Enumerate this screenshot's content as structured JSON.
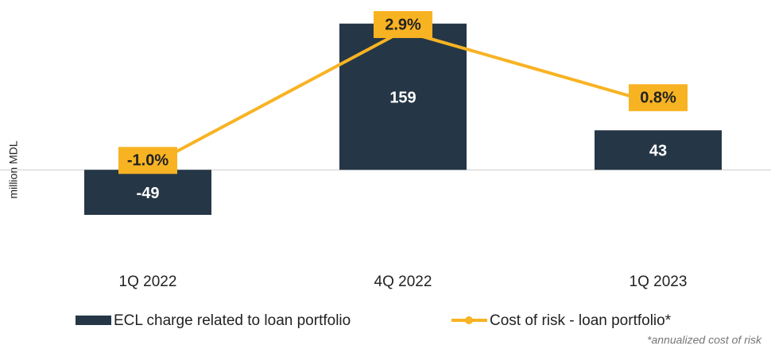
{
  "chart_data": {
    "type": "bar",
    "y_axis_label": "million MDL",
    "categories": [
      "1Q 2022",
      "4Q 2022",
      "1Q 2023"
    ],
    "series": [
      {
        "name": "ECL charge related to loan portfolio",
        "type": "bar",
        "color": "#253746",
        "values": [
          -49,
          159,
          43
        ]
      },
      {
        "name": "Cost of risk - loan portfolio*",
        "type": "line",
        "axis": "y2",
        "color": "#f8b323",
        "values": [
          -1.0,
          2.9,
          0.8
        ],
        "value_labels": [
          "-1.0%",
          "2.9%",
          "0.8%"
        ]
      }
    ],
    "ylim": [
      -80,
      170
    ],
    "y2lim": [
      -3.2,
      3.4
    ],
    "legend": "bottom",
    "footnote": "*annualized cost of risk"
  }
}
